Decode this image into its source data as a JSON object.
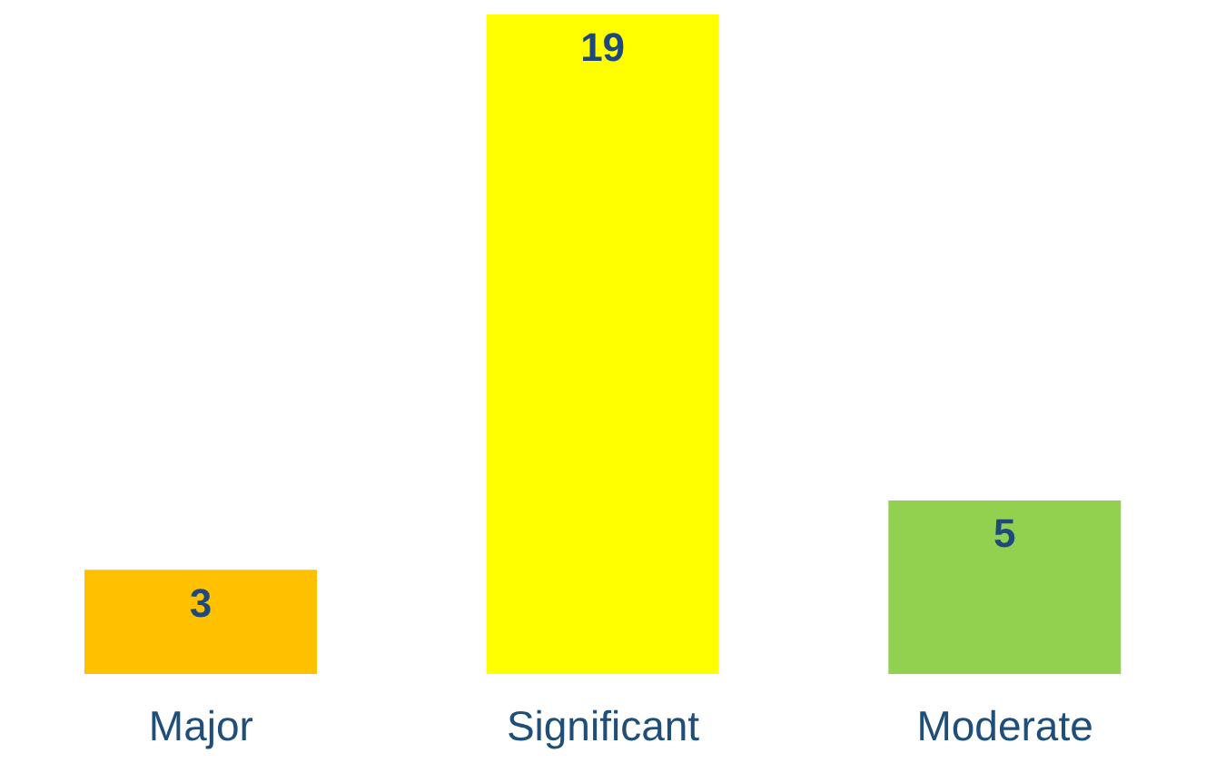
{
  "chart_data": {
    "type": "bar",
    "categories": [
      "Major",
      "Significant",
      "Moderate"
    ],
    "values": [
      3,
      19,
      5
    ],
    "colors": [
      "#ffc000",
      "#ffff00",
      "#92d050"
    ],
    "data_labels": true,
    "grid": false,
    "legend": false
  }
}
